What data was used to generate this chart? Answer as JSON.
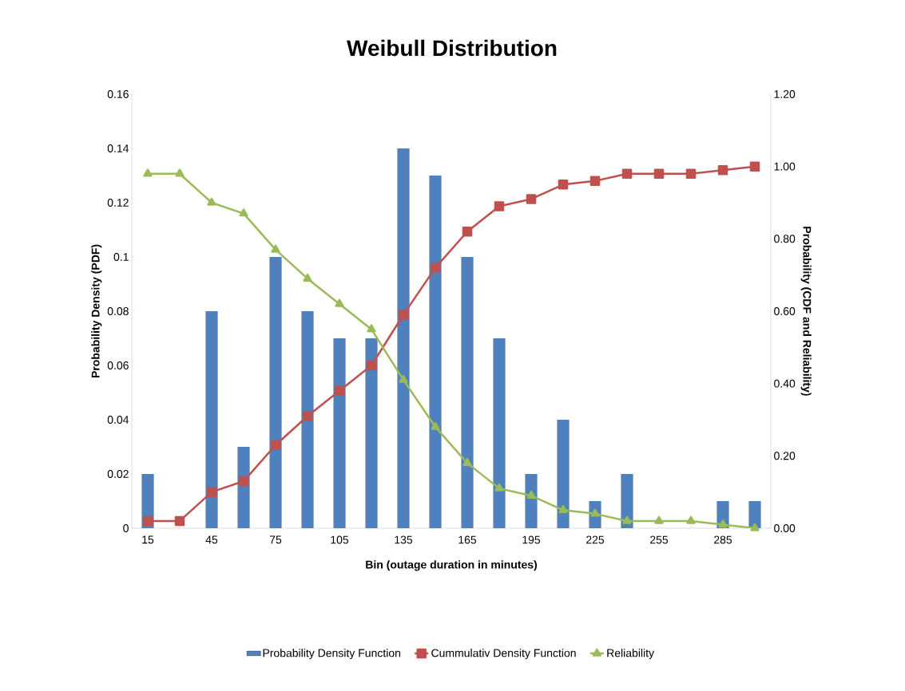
{
  "chart_data": {
    "type": "bar",
    "title": "Weibull Distribution",
    "xlabel": "Bin (outage duration in minutes)",
    "ylabel": "Probability Density (PDF)",
    "y2label": "Probability (CDF and Reliability)",
    "categories": [
      "15",
      null,
      "45",
      null,
      "75",
      null,
      "105",
      null,
      "135",
      null,
      "165",
      null,
      "195",
      null,
      "225",
      null,
      "255",
      null,
      "285",
      null
    ],
    "series": [
      {
        "name": "Probability Density Function",
        "color": "#4f81bd",
        "values": [
          0.02,
          0,
          0.08,
          0.03,
          0.1,
          0.08,
          0.07,
          0.07,
          0.14,
          0.13,
          0.1,
          0.07,
          0.02,
          0.04,
          0.01,
          0.02,
          0,
          0,
          0.01,
          0.01
        ]
      },
      {
        "name": "Cummulativ Density Function",
        "type": "line",
        "axis": "y2",
        "marker": "square",
        "color": "#c0504d",
        "values": [
          0.02,
          0.02,
          0.1,
          0.13,
          0.23,
          0.31,
          0.38,
          0.45,
          0.59,
          0.72,
          0.82,
          0.89,
          0.91,
          0.95,
          0.96,
          0.98,
          0.98,
          0.98,
          0.99,
          1.0
        ]
      },
      {
        "name": "Reliability",
        "type": "line",
        "axis": "y2",
        "marker": "triangle",
        "color": "#9bbb59",
        "values": [
          0.98,
          0.98,
          0.9,
          0.87,
          0.77,
          0.69,
          0.62,
          0.55,
          0.41,
          0.28,
          0.18,
          0.11,
          0.09,
          0.05,
          0.04,
          0.02,
          0.02,
          0.02,
          0.01,
          0.0
        ]
      }
    ],
    "ylim": [
      0,
      0.16
    ],
    "yticks": [
      0,
      0.02,
      0.04,
      0.06,
      0.08,
      0.1,
      0.12,
      0.14,
      0.16
    ],
    "y2lim": [
      0,
      1.2
    ],
    "y2ticks": [
      {
        "value": 0,
        "label": "0.00"
      },
      {
        "value": 0.2,
        "label": "0.20"
      },
      {
        "value": 0.4,
        "label": "0.40"
      },
      {
        "value": 0.6,
        "label": "0.60"
      },
      {
        "value": 0.8,
        "label": "0.80"
      },
      {
        "value": 1.0,
        "label": "1.00"
      },
      {
        "value": 1.2,
        "label": "1.20"
      }
    ],
    "legend": "bottom"
  }
}
